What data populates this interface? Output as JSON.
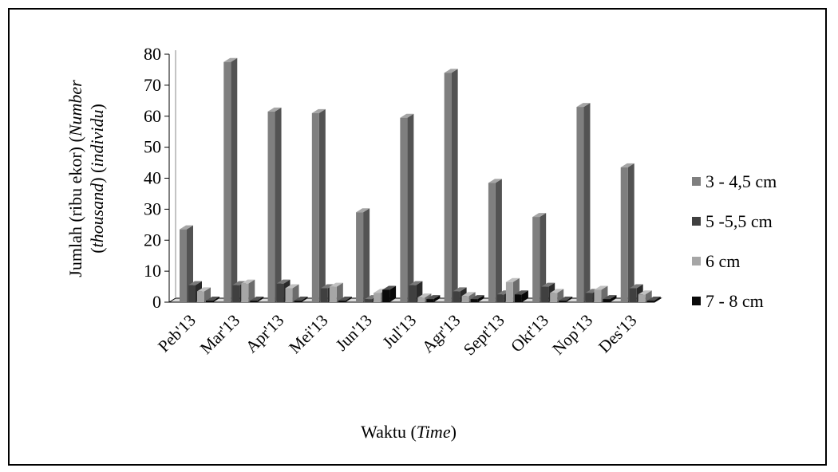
{
  "chart_data": {
    "type": "bar",
    "categories": [
      "Peb'13",
      "Mar'13",
      "Apr'13",
      "Mei'13",
      "Jun'13",
      "Jul'13",
      "Agr'13",
      "Sept'13",
      "Okt'13",
      "Nop'13",
      "Des'13"
    ],
    "series": [
      {
        "name": "3 - 4,5 cm",
        "color": "#7f7f7f",
        "values": [
          23.5,
          77.5,
          61.5,
          61.0,
          29.0,
          59.5,
          74.0,
          38.5,
          27.5,
          63.0,
          43.5
        ]
      },
      {
        "name": "5 -5,5 cm",
        "color": "#404040",
        "values": [
          5.5,
          5.5,
          6.0,
          4.5,
          1.0,
          5.5,
          3.5,
          2.5,
          5.0,
          3.0,
          4.5
        ]
      },
      {
        "name": "6 cm",
        "color": "#a6a6a6",
        "values": [
          3.5,
          6.0,
          4.5,
          5.0,
          3.0,
          1.5,
          2.0,
          6.5,
          3.0,
          4.0,
          2.5
        ]
      },
      {
        "name": "7 - 8 cm",
        "color": "#0a0a0a",
        "values": [
          0.5,
          0.5,
          0.5,
          0.5,
          4.0,
          1.0,
          1.0,
          2.5,
          0.5,
          1.0,
          0.5
        ]
      }
    ],
    "ylabel": {
      "line1": "Jumlah (ribu ekor) (Number",
      "line1_plain": "Jumlah (ribu ekor) (",
      "line1_italic": "Number",
      "line2_italic_a": "thousand",
      "line2_italic_b": "individu",
      "line2": "(thousand) (individu)"
    },
    "xlabel": {
      "full": "Waktu (Time)",
      "plain": "Waktu (",
      "italic": "Time",
      "close": ")"
    },
    "ylim": [
      0,
      80
    ],
    "yticks": [
      0,
      10,
      20,
      30,
      40,
      50,
      60,
      70,
      80
    ],
    "grid": false,
    "legend_position": "right",
    "style": "3d-clustered-column"
  }
}
